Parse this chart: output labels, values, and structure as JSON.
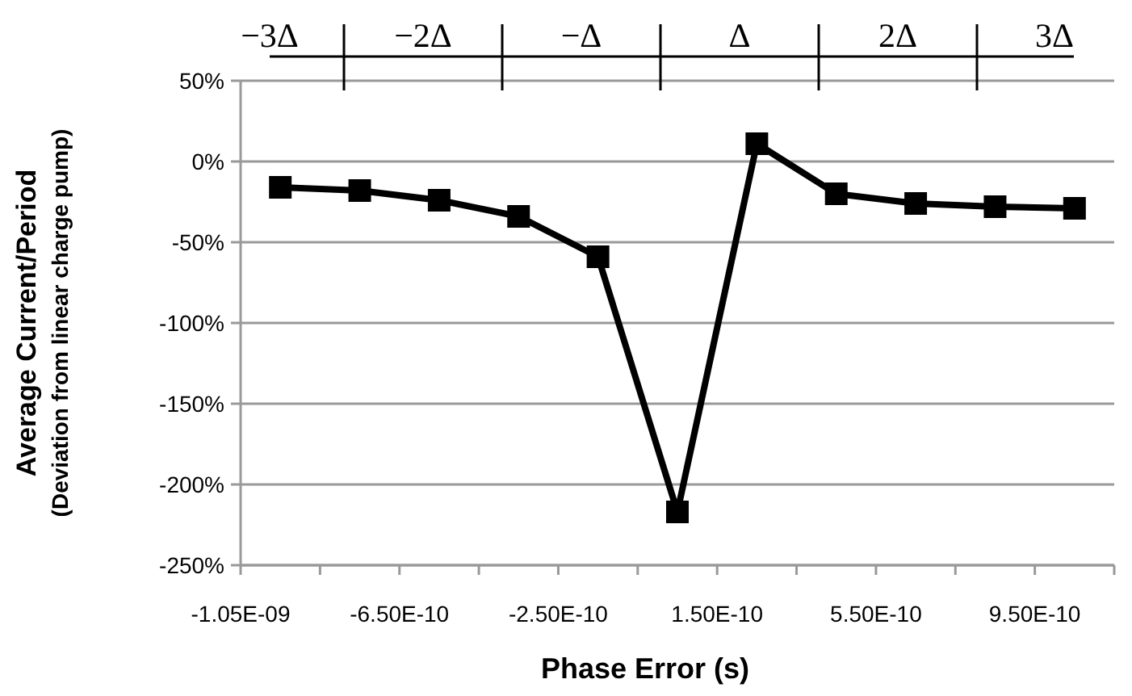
{
  "chart_data": {
    "type": "line",
    "xlabel": "Phase Error (s)",
    "ylabel": "Average Current/Period\n(Deviation from linear charge pump)",
    "annotations": [
      "−3Δ",
      "−2Δ",
      "−Δ",
      "Δ",
      "2Δ",
      "3Δ"
    ],
    "x": [
      -9.5e-10,
      -7.5e-10,
      -5.5e-10,
      -3.5e-10,
      -1.5e-10,
      5e-11,
      2.5e-10,
      4.5e-10,
      6.5e-10,
      8.5e-10,
      1.05e-09
    ],
    "series": [
      {
        "color": "#000000",
        "values": [
          -16,
          -18,
          -24,
          -34,
          -59,
          -217,
          11,
          -20,
          -26,
          -28,
          -29
        ]
      }
    ],
    "marker": "square",
    "line_style": "solid",
    "xlim": [
      -1.05e-09,
      1.15e-09
    ],
    "xticks": [
      {
        "value": -1.05e-09,
        "label": "-1.05E-09"
      },
      {
        "value": -8.5e-10,
        "label": null
      },
      {
        "value": -6.5e-10,
        "label": "-6.50E-10"
      },
      {
        "value": -4.5e-10,
        "label": null
      },
      {
        "value": -2.5e-10,
        "label": "-2.50E-10"
      },
      {
        "value": -5e-11,
        "label": null
      },
      {
        "value": 1.5e-10,
        "label": "1.50E-10"
      },
      {
        "value": 3.5e-10,
        "label": null
      },
      {
        "value": 5.5e-10,
        "label": "5.50E-10"
      },
      {
        "value": 7.5e-10,
        "label": null
      },
      {
        "value": 9.5e-10,
        "label": "9.50E-10"
      },
      {
        "value": 1.15e-09,
        "label": null
      }
    ],
    "ylim": [
      -250,
      50
    ],
    "yticks": [
      {
        "value": 50,
        "label": "50%"
      },
      {
        "value": 0,
        "label": "0%"
      },
      {
        "value": -50,
        "label": "-50%"
      },
      {
        "value": -100,
        "label": "-100%"
      },
      {
        "value": -150,
        "label": "-150%"
      },
      {
        "value": -200,
        "label": "-200%"
      },
      {
        "value": -250,
        "label": "-250%"
      }
    ],
    "grid": "y"
  }
}
